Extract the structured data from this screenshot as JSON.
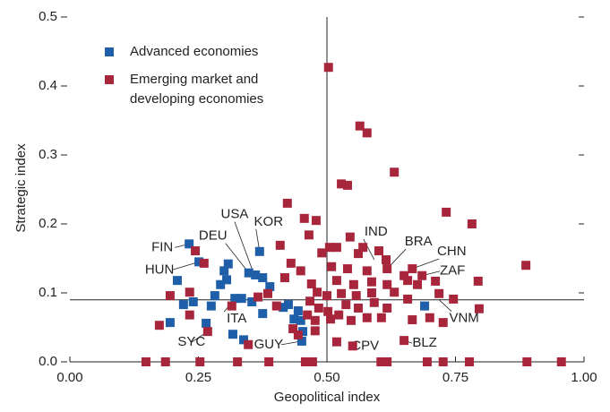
{
  "chart_data": {
    "type": "scatter",
    "xlabel": "Geopolitical index",
    "ylabel": "Strategic index",
    "xlim": [
      0,
      1
    ],
    "ylim": [
      0,
      0.5
    ],
    "xticks": [
      {
        "value": 0,
        "label": "0.00"
      },
      0.25,
      {
        "value": 0.5,
        "label": "0.50"
      },
      0.75,
      {
        "value": 1,
        "label": "1.00"
      }
    ],
    "yticks": [
      {
        "value": 0,
        "label": "0.0"
      },
      0.1,
      0.2,
      0.3,
      0.4,
      0.5
    ],
    "reference_x": 0.5,
    "reference_y": 0.09,
    "series": [
      {
        "name": "Advanced economies",
        "color": "#1f5ea8",
        "x": [
          0.232,
          0.251,
          0.209,
          0.221,
          0.24,
          0.195,
          0.265,
          0.275,
          0.282,
          0.293,
          0.3,
          0.308,
          0.305,
          0.321,
          0.334,
          0.348,
          0.361,
          0.369,
          0.375,
          0.317,
          0.338,
          0.354,
          0.375,
          0.389,
          0.415,
          0.425,
          0.436,
          0.444,
          0.449,
          0.453,
          0.451,
          0.69
        ],
        "y": [
          0.171,
          0.145,
          0.118,
          0.083,
          0.087,
          0.057,
          0.056,
          0.081,
          0.096,
          0.112,
          0.132,
          0.142,
          0.119,
          0.092,
          0.092,
          0.129,
          0.126,
          0.16,
          0.122,
          0.04,
          0.032,
          0.087,
          0.07,
          0.109,
          0.079,
          0.083,
          0.062,
          0.074,
          0.06,
          0.044,
          0.03,
          0.081
        ]
      },
      {
        "name": "Emerging market and developing economies",
        "color": "#a8263b",
        "x": [
          0.503,
          0.564,
          0.578,
          0.631,
          0.528,
          0.54,
          0.423,
          0.732,
          0.782,
          0.456,
          0.479,
          0.465,
          0.409,
          0.505,
          0.519,
          0.57,
          0.545,
          0.601,
          0.49,
          0.615,
          0.561,
          0.244,
          0.261,
          0.887,
          0.666,
          0.617,
          0.43,
          0.449,
          0.509,
          0.54,
          0.578,
          0.65,
          0.685,
          0.711,
          0.794,
          0.418,
          0.47,
          0.519,
          0.552,
          0.587,
          0.617,
          0.657,
          0.676,
          0.195,
          0.233,
          0.385,
          0.481,
          0.5,
          0.528,
          0.557,
          0.587,
          0.631,
          0.718,
          0.746,
          0.657,
          0.174,
          0.233,
          0.366,
          0.402,
          0.467,
          0.484,
          0.502,
          0.537,
          0.561,
          0.592,
          0.617,
          0.666,
          0.7,
          0.726,
          0.796,
          0.462,
          0.477,
          0.507,
          0.523,
          0.547,
          0.578,
          0.606,
          0.434,
          0.444,
          0.477,
          0.519,
          0.55,
          0.65,
          0.347,
          0.315,
          0.268,
          0.148,
          0.186,
          0.253,
          0.326,
          0.387,
          0.458,
          0.472,
          0.605,
          0.617,
          0.695,
          0.726,
          0.777,
          0.889,
          0.956
        ],
        "y": [
          0.427,
          0.342,
          0.332,
          0.275,
          0.258,
          0.256,
          0.23,
          0.217,
          0.2,
          0.208,
          0.205,
          0.184,
          0.169,
          0.166,
          0.166,
          0.166,
          0.181,
          0.161,
          0.158,
          0.148,
          0.157,
          0.161,
          0.143,
          0.14,
          0.135,
          0.135,
          0.143,
          0.132,
          0.138,
          0.135,
          0.132,
          0.125,
          0.125,
          0.117,
          0.117,
          0.122,
          0.113,
          0.118,
          0.112,
          0.116,
          0.112,
          0.118,
          0.112,
          0.096,
          0.101,
          0.099,
          0.101,
          0.096,
          0.099,
          0.096,
          0.1,
          0.101,
          0.099,
          0.091,
          0.091,
          0.053,
          0.068,
          0.094,
          0.081,
          0.088,
          0.078,
          0.073,
          0.083,
          0.078,
          0.086,
          0.078,
          0.061,
          0.064,
          0.057,
          0.077,
          0.068,
          0.06,
          0.062,
          0.068,
          0.06,
          0.064,
          0.064,
          0.048,
          0.039,
          0.045,
          0.029,
          0.023,
          0.031,
          0.025,
          0.081,
          0.044,
          0,
          0,
          0,
          0,
          0,
          0,
          0,
          0,
          0,
          0,
          0,
          0,
          0,
          0
        ]
      }
    ],
    "annotations": [
      {
        "text": "USA",
        "x": 0.357,
        "y": 0.129
      },
      {
        "text": "KOR",
        "x": 0.369,
        "y": 0.16
      },
      {
        "text": "DEU",
        "x": 0.348,
        "y": 0.129
      },
      {
        "text": "FIN",
        "x": 0.232,
        "y": 0.171
      },
      {
        "text": "HUN",
        "x": 0.251,
        "y": 0.145
      },
      {
        "text": "IND",
        "x": 0.592,
        "y": 0.148
      },
      {
        "text": "BRA",
        "x": 0.617,
        "y": 0.135
      },
      {
        "text": "CHN",
        "x": 0.666,
        "y": 0.135
      },
      {
        "text": "ZAF",
        "x": 0.685,
        "y": 0.125
      },
      {
        "text": "VNM",
        "x": 0.718,
        "y": 0.09
      },
      {
        "text": "ITA",
        "x": 0.321,
        "y": 0.092
      },
      {
        "text": "SYC",
        "x": 0.268,
        "y": 0.044
      },
      {
        "text": "GUY",
        "x": 0.451,
        "y": 0.03
      },
      {
        "text": "CPV",
        "x": 0.55,
        "y": 0.023
      },
      {
        "text": "BLZ",
        "x": 0.65,
        "y": 0.031
      }
    ]
  }
}
